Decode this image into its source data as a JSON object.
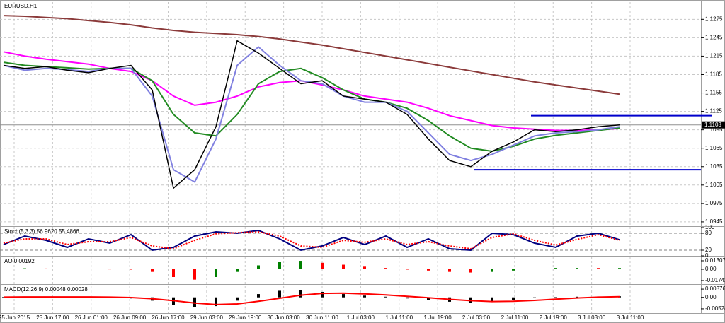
{
  "title": "EURUSD,H1",
  "time_axis": [
    "25 Jun 2015",
    "25 Jun 17:00",
    "26 Jun 01:00",
    "26 Jun 09:00",
    "26 Jun 17:00",
    "29 Jun 03:00",
    "29 Jun 19:00",
    "30 Jun 03:00",
    "30 Jun 11:00",
    "1 Jul 03:00",
    "1 Jul 11:00",
    "1 Jul 19:00",
    "2 Jul 03:00",
    "2 Jul 11:00",
    "2 Jul 19:00",
    "3 Jul 03:00",
    "3 Jul 11:00"
  ],
  "chart_data": [
    {
      "type": "line",
      "ylim": [
        1.0938,
        1.1303
      ],
      "yticks": [
        1.1275,
        1.1245,
        1.1215,
        1.1185,
        1.1155,
        1.1125,
        1.1095,
        1.1065,
        1.1035,
        1.1005,
        1.0975,
        1.0945
      ],
      "grid": true,
      "current": 1.1103,
      "levels": [
        1.1118,
        1.103
      ],
      "level_color": "#0000cc",
      "series": [
        {
          "color": "#8b3a3a",
          "values": [
            1.1281,
            1.128,
            1.1278,
            1.1276,
            1.1273,
            1.127,
            1.1266,
            1.1261,
            1.1257,
            1.1254,
            1.1252,
            1.125,
            1.1247,
            1.1243,
            1.1238,
            1.1233,
            1.1227,
            1.1221,
            1.1215,
            1.1209,
            1.1203,
            1.1197,
            1.1191,
            1.1185,
            1.1179,
            1.1173,
            1.1168,
            1.1163,
            1.1158,
            1.1153
          ]
        },
        {
          "color": "#ff00ff",
          "values": [
            1.1222,
            1.1215,
            1.121,
            1.1206,
            1.1202,
            1.1195,
            1.119,
            1.1175,
            1.115,
            1.1135,
            1.114,
            1.115,
            1.1165,
            1.1172,
            1.1175,
            1.1168,
            1.116,
            1.115,
            1.1145,
            1.114,
            1.113,
            1.1118,
            1.111,
            1.1102,
            1.1098,
            1.1096,
            1.1094,
            1.1094,
            1.1095,
            1.1097
          ]
        },
        {
          "color": "#228b22",
          "values": [
            1.1205,
            1.12,
            1.1198,
            1.1196,
            1.1194,
            1.1195,
            1.1195,
            1.1175,
            1.112,
            1.109,
            1.1085,
            1.112,
            1.117,
            1.119,
            1.1195,
            1.118,
            1.116,
            1.1145,
            1.114,
            1.113,
            1.111,
            1.1085,
            1.1065,
            1.106,
            1.1068,
            1.108,
            1.1086,
            1.109,
            1.1094,
            1.1098
          ]
        },
        {
          "color": "#8080e0",
          "values": [
            1.12,
            1.1192,
            1.1195,
            1.1193,
            1.119,
            1.1195,
            1.1195,
            1.115,
            1.103,
            1.101,
            1.108,
            1.12,
            1.123,
            1.12,
            1.1175,
            1.117,
            1.115,
            1.114,
            1.114,
            1.1125,
            1.109,
            1.1055,
            1.1045,
            1.1055,
            1.107,
            1.1085,
            1.109,
            1.1092,
            1.1095,
            1.11
          ]
        },
        {
          "color": "#000000",
          "values": [
            1.12,
            1.1195,
            1.1198,
            1.1192,
            1.1188,
            1.1195,
            1.12,
            1.116,
            1.1,
            1.103,
            1.11,
            1.124,
            1.122,
            1.1195,
            1.117,
            1.1175,
            1.115,
            1.1145,
            1.114,
            1.112,
            1.108,
            1.1045,
            1.1035,
            1.106,
            1.1075,
            1.1095,
            1.1092,
            1.1095,
            1.11,
            1.1103
          ]
        }
      ]
    },
    {
      "type": "line",
      "label": "Stoch(5,3,3) 56.9620 55.4866",
      "ylim": [
        0,
        100
      ],
      "yticks": [
        100,
        80,
        20,
        0
      ],
      "levels": [
        80,
        20
      ],
      "level_color": "#808080",
      "series": [
        {
          "color": "#000080",
          "values": [
            40,
            70,
            55,
            30,
            60,
            45,
            75,
            20,
            30,
            70,
            85,
            80,
            90,
            60,
            20,
            35,
            65,
            40,
            70,
            30,
            60,
            25,
            20,
            80,
            75,
            45,
            30,
            70,
            80,
            57
          ]
        },
        {
          "color": "#ff0000",
          "dashed": true,
          "values": [
            45,
            60,
            60,
            40,
            50,
            50,
            65,
            35,
            25,
            55,
            78,
            82,
            85,
            70,
            35,
            30,
            55,
            48,
            60,
            40,
            50,
            35,
            25,
            65,
            78,
            55,
            38,
            58,
            75,
            55
          ]
        }
      ]
    },
    {
      "type": "bar",
      "label": "AO 0.00192",
      "ylim": [
        -0.0229,
        0.0185
      ],
      "yticks": [
        0.01307,
        {
          "value": 0,
          "label": "0.00"
        },
        -0.01742
      ],
      "series": [
        {
          "color": "#008000",
          "down_color": "#ff0000",
          "values": [
            0.001,
            0.0015,
            0.0012,
            0.0008,
            0.0006,
            0.0004,
            0,
            -0.004,
            -0.012,
            -0.016,
            -0.012,
            -0.004,
            0.006,
            0.011,
            0.013,
            0.01,
            0.007,
            0.004,
            0.002,
            0,
            -0.002,
            -0.004,
            -0.005,
            -0.004,
            -0.002,
            0.001,
            0.002,
            0.002,
            0.0019,
            0.00192
          ]
        }
      ]
    },
    {
      "type": "bar",
      "label": "MACD(12,26,9) 0.00048 0.00028",
      "ylim": [
        -0.0072,
        0.0054
      ],
      "yticks": [
        0.00376,
        {
          "value": 0,
          "label": "0.00"
        },
        -0.00524
      ],
      "series": [
        {
          "color": "#000000",
          "values": [
            0.0002,
            0.0003,
            0.0003,
            0.0002,
            0.0001,
            0,
            -0.0005,
            -0.0015,
            -0.0035,
            -0.0045,
            -0.004,
            -0.0015,
            0.0015,
            0.003,
            0.0033,
            0.0025,
            0.0015,
            0.0008,
            0.0003,
            -0.0005,
            -0.0012,
            -0.002,
            -0.0025,
            -0.0022,
            -0.0012,
            -0.0004,
            0.0001,
            0.0003,
            0.0004,
            0.00048
          ]
        },
        {
          "color": "#ff0000",
          "line": true,
          "values": [
            0.0001,
            0.0002,
            0.0002,
            0.0002,
            0.0002,
            0.0001,
            -0.0001,
            -0.0006,
            -0.0015,
            -0.0026,
            -0.0033,
            -0.003,
            -0.0018,
            -0.0004,
            0.001,
            0.0018,
            0.0019,
            0.0016,
            0.0011,
            0.0005,
            -0.0002,
            -0.0009,
            -0.0015,
            -0.0019,
            -0.0018,
            -0.0014,
            -0.0008,
            -0.0003,
            0.0001,
            0.00028
          ]
        }
      ]
    }
  ]
}
